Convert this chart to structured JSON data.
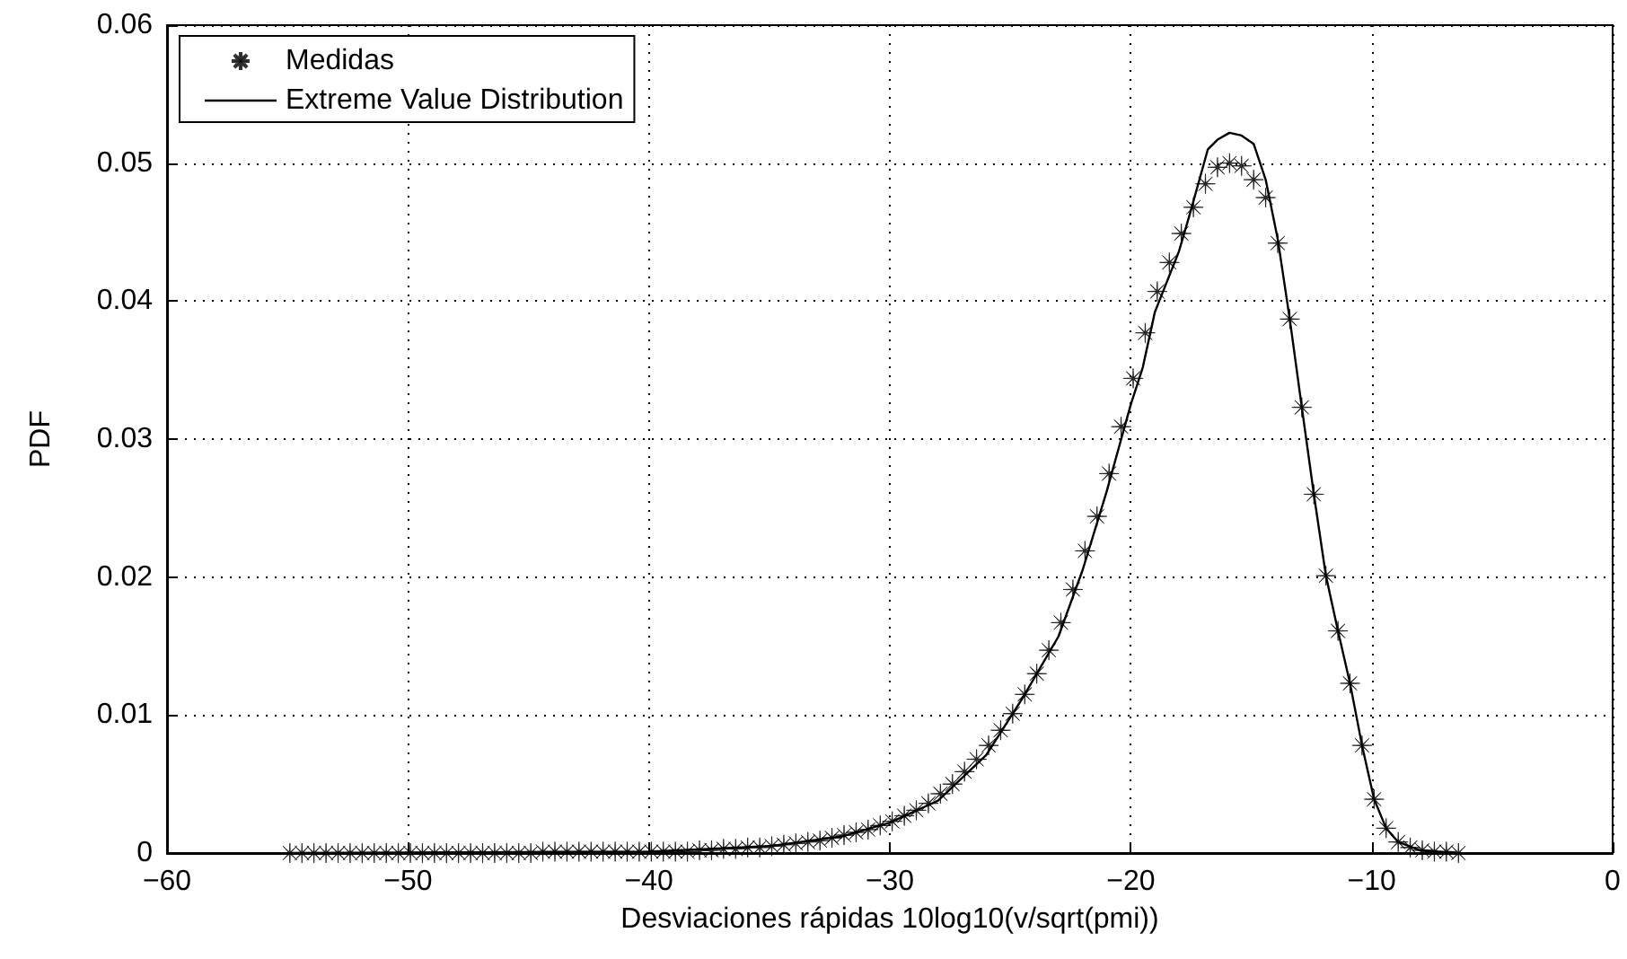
{
  "chart_data": {
    "type": "line",
    "xlabel": "Desviaciones rápidas 10log10(v/sqrt(pmi))",
    "ylabel": "PDF",
    "xlim": [
      -60,
      0
    ],
    "xticks": [
      -60,
      -50,
      -40,
      -30,
      -20,
      -10,
      0
    ],
    "ylim": [
      0,
      0.06
    ],
    "yticks": [
      0,
      0.01,
      0.02,
      0.03,
      0.04,
      0.05,
      0.06
    ],
    "grid": true,
    "legend": "top left",
    "series": [
      {
        "name": "Medidas",
        "type": "scatter",
        "marker": "star",
        "color": "#000000",
        "x": [
          -54.9,
          -54.4,
          -53.9,
          -53.4,
          -52.9,
          -52.4,
          -51.9,
          -51.4,
          -50.9,
          -50.4,
          -49.9,
          -49.4,
          -48.9,
          -48.4,
          -47.9,
          -47.4,
          -46.9,
          -46.4,
          -45.9,
          -45.4,
          -44.9,
          -44.4,
          -43.9,
          -43.4,
          -42.9,
          -42.4,
          -41.9,
          -41.4,
          -40.9,
          -40.4,
          -39.9,
          -39.4,
          -38.9,
          -38.4,
          -37.9,
          -37.4,
          -36.9,
          -36.4,
          -35.9,
          -35.4,
          -34.9,
          -34.4,
          -33.9,
          -33.4,
          -32.9,
          -32.4,
          -31.9,
          -31.4,
          -30.9,
          -30.4,
          -29.9,
          -29.4,
          -28.9,
          -28.4,
          -27.9,
          -27.4,
          -26.9,
          -26.4,
          -25.9,
          -25.4,
          -24.9,
          -24.4,
          -23.9,
          -23.4,
          -22.9,
          -22.4,
          -21.9,
          -21.4,
          -20.9,
          -20.4,
          -19.9,
          -19.4,
          -18.9,
          -18.4,
          -17.9,
          -17.4,
          -16.9,
          -16.4,
          -15.9,
          -15.4,
          -14.9,
          -14.4,
          -13.9,
          -13.4,
          -12.9,
          -12.4,
          -11.9,
          -11.4,
          -10.9,
          -10.4,
          -9.9,
          -9.4,
          -8.9,
          -8.4,
          -7.9,
          -7.4,
          -6.9,
          -6.4
        ],
        "values": [
          0,
          0,
          0,
          0,
          0,
          0,
          0,
          0,
          0,
          0,
          0,
          0,
          0,
          0,
          0,
          0,
          0,
          0,
          0,
          0,
          0,
          0.0001,
          0.0001,
          0.0001,
          0.0001,
          0.0001,
          0.0001,
          0.0001,
          0.0001,
          0.0001,
          0.0001,
          0.0001,
          0.0001,
          0.0001,
          0.0002,
          0.0002,
          0.0003,
          0.0003,
          0.0004,
          0.0004,
          0.0005,
          0.0006,
          0.0007,
          0.0008,
          0.0009,
          0.0011,
          0.0013,
          0.0015,
          0.0017,
          0.002,
          0.0023,
          0.0027,
          0.0031,
          0.0036,
          0.0043,
          0.005,
          0.0059,
          0.0068,
          0.0078,
          0.0089,
          0.0101,
          0.0115,
          0.013,
          0.0147,
          0.0167,
          0.0191,
          0.0219,
          0.0244,
          0.0275,
          0.0309,
          0.0344,
          0.0377,
          0.0407,
          0.0428,
          0.0449,
          0.0468,
          0.0485,
          0.0497,
          0.05,
          0.0498,
          0.0488,
          0.0475,
          0.0442,
          0.0387,
          0.0323,
          0.026,
          0.0201,
          0.0161,
          0.0123,
          0.0078,
          0.0039,
          0.0018,
          0.0008,
          0.0004,
          0.0002,
          0.0001,
          0.0001,
          0
        ]
      },
      {
        "name": "Extreme Value Distribution",
        "type": "line",
        "marker": "none",
        "line_style": "solid",
        "color": "#000000",
        "x": [
          -55,
          -40,
          -35,
          -32,
          -30,
          -28,
          -26,
          -24.5,
          -23,
          -22,
          -21,
          -20,
          -19.5,
          -19,
          -18,
          -17.5,
          -16.8,
          -16.4,
          -15.9,
          -15.4,
          -14.9,
          -14.4,
          -13.9,
          -13.4,
          -12.9,
          -12.4,
          -11.9,
          -11.4,
          -10.9,
          -10.4,
          -9.9,
          -9.4,
          -8.9,
          -8,
          -6.5
        ],
        "values": [
          0,
          0.0001,
          0.0005,
          0.0012,
          0.0022,
          0.0038,
          0.0071,
          0.0112,
          0.0157,
          0.0205,
          0.0262,
          0.0325,
          0.0352,
          0.0392,
          0.0436,
          0.0466,
          0.051,
          0.0517,
          0.0522,
          0.052,
          0.0514,
          0.0488,
          0.0445,
          0.0387,
          0.0323,
          0.026,
          0.0201,
          0.0161,
          0.0123,
          0.0078,
          0.0039,
          0.0018,
          0.0008,
          0.0002,
          0
        ]
      }
    ]
  }
}
